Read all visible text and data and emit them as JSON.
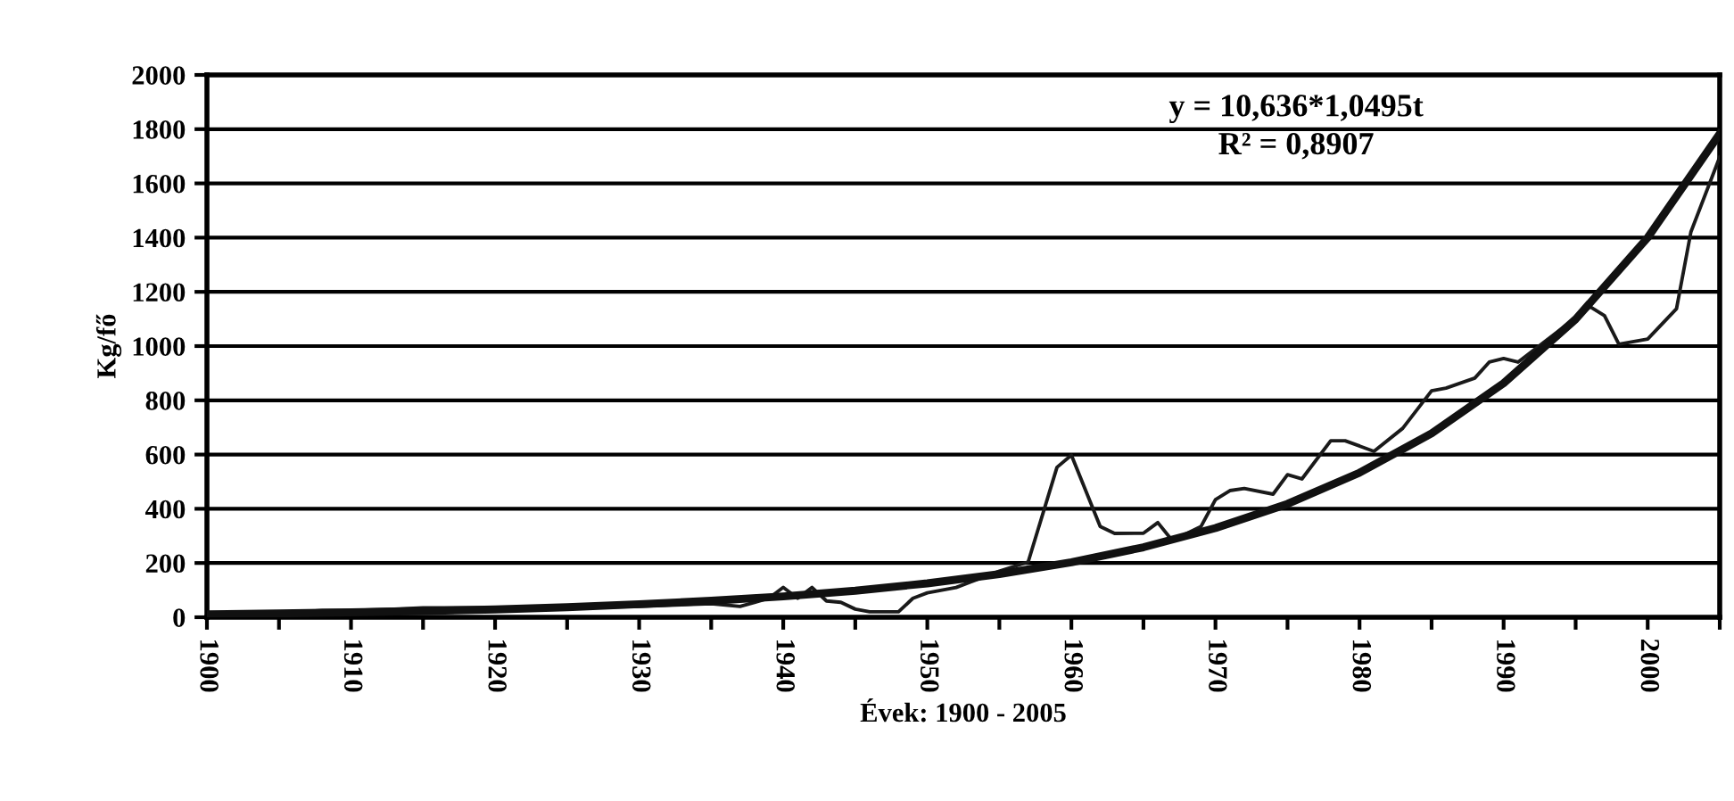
{
  "chart_data": {
    "type": "line",
    "xlabel": "Évek: 1900 - 2005",
    "ylabel": "Kg/fő",
    "xlim": [
      1900,
      2005
    ],
    "xticks": [
      1900,
      {
        "value": 1905,
        "label": null
      },
      1910,
      {
        "value": 1915,
        "label": null
      },
      1920,
      {
        "value": 1925,
        "label": null
      },
      1930,
      {
        "value": 1935,
        "label": null
      },
      1940,
      {
        "value": 1945,
        "label": null
      },
      1950,
      {
        "value": 1955,
        "label": null
      },
      1960,
      {
        "value": 1965,
        "label": null
      },
      1970,
      {
        "value": 1975,
        "label": null
      },
      1980,
      {
        "value": 1985,
        "label": null
      },
      1990,
      {
        "value": 1995,
        "label": null
      },
      2000,
      {
        "value": 2005,
        "label": null
      }
    ],
    "ylim": [
      0,
      2000
    ],
    "yticks": [
      0,
      200,
      400,
      600,
      800,
      1000,
      1200,
      1400,
      1600,
      1800,
      2000
    ],
    "grid": "y",
    "legend": false,
    "marker": "none",
    "annotations": [
      "y = 10,636*1,0495t",
      "R² = 0,8907"
    ],
    "series": [
      {
        "color": "#1a1a1a",
        "x": [
          1900,
          1903,
          1905,
          1908,
          1910,
          1913,
          1915,
          1920,
          1925,
          1930,
          1935,
          1937,
          1938,
          1939,
          1940,
          1941,
          1942,
          1943,
          1944,
          1945,
          1946,
          1948,
          1949,
          1950,
          1952,
          1953,
          1955,
          1957,
          1959,
          1960,
          1962,
          1963,
          1965,
          1966,
          1967,
          1969,
          1970,
          1971,
          1972,
          1974,
          1975,
          1976,
          1978,
          1979,
          1981,
          1983,
          1985,
          1986,
          1988,
          1989,
          1990,
          1991,
          1996,
          1997,
          1998,
          2000,
          2002,
          2003,
          2005
        ],
        "values": [
          5,
          10,
          15,
          25,
          25,
          30,
          35,
          35,
          35,
          40,
          50,
          40,
          55,
          70,
          110,
          70,
          110,
          60,
          55,
          30,
          20,
          20,
          70,
          90,
          110,
          130,
          170,
          204,
          553,
          598,
          335,
          309,
          310,
          349,
          283,
          335,
          434,
          467,
          475,
          454,
          526,
          510,
          651,
          651,
          612,
          697,
          835,
          845,
          882,
          941,
          954,
          941,
          1145,
          1112,
          1007,
          1026,
          1138,
          1421,
          1697
        ]
      },
      {
        "type": "line",
        "color": "#111111",
        "x": [
          1900,
          1905,
          1910,
          1915,
          1920,
          1925,
          1930,
          1935,
          1940,
          1945,
          1950,
          1955,
          1960,
          1965,
          1970,
          1975,
          1980,
          1985,
          1990,
          1995,
          2000,
          2005
        ],
        "values": [
          11,
          14,
          18,
          23,
          29,
          37,
          48,
          61,
          77,
          98,
          125,
          159,
          203,
          258,
          329,
          418,
          533,
          678,
          863,
          1099,
          1400,
          1783
        ]
      }
    ]
  }
}
